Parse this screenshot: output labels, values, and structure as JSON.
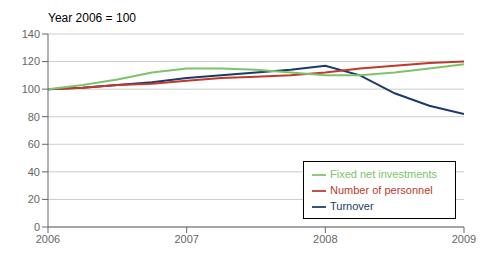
{
  "chart_data": {
    "type": "line",
    "title": "Year 2006 = 100",
    "x": [
      2006.0,
      2006.25,
      2006.5,
      2006.75,
      2007.0,
      2007.25,
      2007.5,
      2007.75,
      2008.0,
      2008.25,
      2008.5,
      2008.75,
      2009.0
    ],
    "series": [
      {
        "name": "Turnover",
        "color": "#1a3a6b",
        "values": [
          100,
          101,
          103,
          105,
          108,
          110,
          112,
          114,
          117,
          110,
          97,
          88,
          82
        ]
      },
      {
        "name": "Number of personnel",
        "color": "#c0392b",
        "values": [
          100,
          101,
          103,
          104,
          106,
          108,
          109,
          110,
          112,
          115,
          117,
          119,
          120
        ]
      },
      {
        "name": "Fixed net investments",
        "color": "#7dc36b",
        "values": [
          100,
          103,
          107,
          112,
          115,
          115,
          114,
          112,
          110,
          110,
          112,
          115,
          118
        ]
      }
    ],
    "xlim": [
      2006,
      2009
    ],
    "ylim": [
      0,
      140
    ],
    "xticks": [
      2006,
      2007,
      2008,
      2009
    ],
    "yticks": [
      0,
      20,
      40,
      60,
      80,
      100,
      120,
      140
    ],
    "grid": "y",
    "legend": "lower right"
  }
}
